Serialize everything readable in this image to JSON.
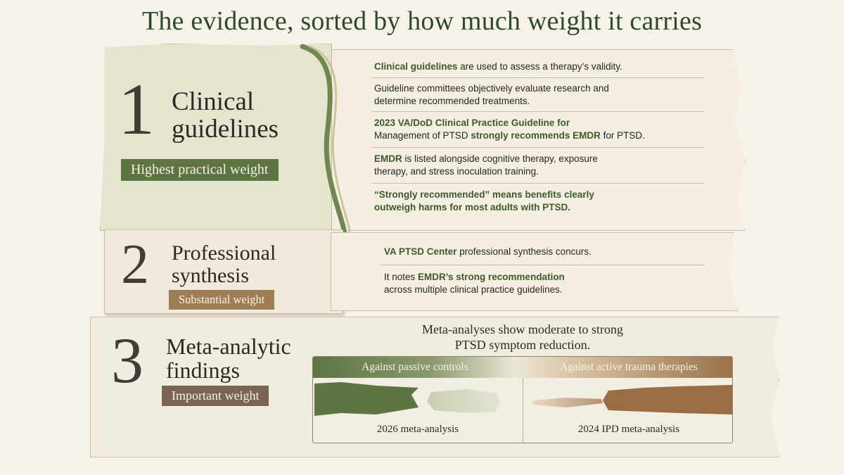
{
  "title": "The evidence, sorted by how much weight it carries",
  "tiers": [
    {
      "number": "1",
      "name_line1": "Clinical",
      "name_line2": "guidelines",
      "weight_label": "Highest practical weight",
      "color": "#5e7441",
      "points": [
        {
          "pre": "",
          "hl": "Clinical guidelines",
          "post": " are used to assess a therapy’s validity."
        },
        {
          "pre": "Guideline committees objectively evaluate research and determine recommended treatments.",
          "hl": "",
          "post": ""
        },
        {
          "pre": "",
          "hl": "2023 VA/DoD Clinical Practice Guideline for",
          "post": ""
        },
        {
          "pre": "Management of PTSD ",
          "hl": "strongly recommends EMDR",
          "post": " for PTSD."
        },
        {
          "pre": "",
          "hl": "EMDR",
          "post": " is listed alongside cognitive therapy, exposure therapy, and stress inoculation training."
        },
        {
          "pre": "",
          "hl": "“Strongly recommended” means benefits clearly outweigh harms for most adults with PTSD.",
          "post": ""
        }
      ]
    },
    {
      "number": "2",
      "name_line1": "Professional",
      "name_line2": "synthesis",
      "weight_label": "Substantial weight",
      "color": "#a07e55",
      "points": [
        {
          "pre": "",
          "hl": "VA PTSD Center",
          "post": " professional synthesis concurs."
        },
        {
          "pre": "It notes ",
          "hl": "EMDR’s strong recommendation",
          "post": ""
        },
        {
          "pre": "across multiple clinical practice guidelines.",
          "hl": "",
          "post": ""
        }
      ]
    },
    {
      "number": "3",
      "name_line1": "Meta-analytic",
      "name_line2": "findings",
      "weight_label": "Important weight",
      "color": "#7a6650",
      "summary_line1": "Meta-analyses show moderate to strong",
      "summary_line2": "PTSD symptom reduction.",
      "comparisons": [
        {
          "heading": "Against passive controls",
          "source": "2026 meta-analysis",
          "color": "#5e7441"
        },
        {
          "heading": "Against active trauma therapies",
          "source": "2024 IPD meta-analysis",
          "color": "#9a7048"
        }
      ]
    }
  ]
}
